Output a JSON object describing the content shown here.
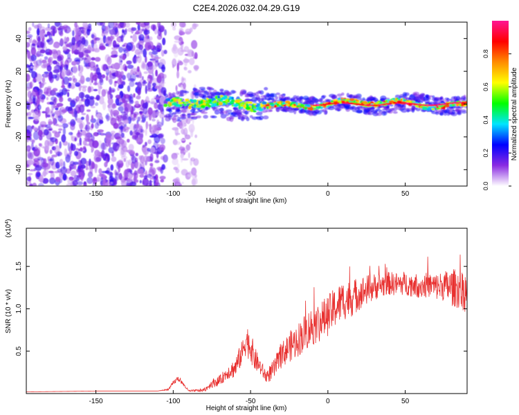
{
  "figure_title": "C2E4.2026.032.04.29.G19",
  "chart_data": [
    {
      "type": "heatmap",
      "title": "C2E4.2026.032.04.29.G19",
      "xlabel": "Height of straight line (km)",
      "ylabel": "Frequency (Hz)",
      "xlim": [
        -195,
        90
      ],
      "ylim": [
        -50,
        50
      ],
      "xticks": [
        -150,
        -100,
        -50,
        0,
        50
      ],
      "yticks": [
        -40,
        -20,
        0,
        20,
        40
      ],
      "xtick_labels": [
        "-150",
        "-100",
        "-50",
        "0",
        "50"
      ],
      "ytick_labels": [
        "-40",
        "-20",
        "0",
        "20",
        "40"
      ],
      "colorbar": {
        "label": "Normalized spectral amplitude",
        "range": [
          0,
          1
        ],
        "ticks": [
          0.0,
          0.2,
          0.4,
          0.6,
          0.8
        ],
        "tick_labels": [
          "0.0",
          "0.2",
          "0.4",
          "0.6",
          "0.8"
        ],
        "colors": [
          "#ffffff",
          "#8a2be2",
          "#0000ff",
          "#00e5ff",
          "#00ff00",
          "#ffff00",
          "#ff8c00",
          "#ff0000",
          "#ff1493"
        ]
      },
      "regions": [
        {
          "name": "noise",
          "x": [
            -195,
            -105
          ],
          "freq": [
            -50,
            50
          ],
          "amplitude": 0.15
        },
        {
          "name": "sparse-noise",
          "x": [
            -100,
            -85
          ],
          "freq": [
            -50,
            50
          ],
          "amplitude": 0.08
        },
        {
          "name": "signal-track",
          "x": [
            -105,
            90
          ],
          "freq_center": 0,
          "width_hz": 8,
          "amplitude": 0.9
        }
      ]
    },
    {
      "type": "line",
      "xlabel": "Height of straight line (km)",
      "ylabel": "SNR (10 * v/v)",
      "y_scale_label": "(x10",
      "y_scale_exponent": "4",
      "y_scale_close": ")",
      "xlim": [
        -195,
        90
      ],
      "ylim": [
        0,
        1.95
      ],
      "xticks": [
        -150,
        -100,
        -50,
        0,
        50
      ],
      "xtick_labels": [
        "-150",
        "-100",
        "-50",
        "0",
        "50"
      ],
      "yticks": [
        0.5,
        1.0,
        1.5
      ],
      "ytick_labels": [
        "0.5",
        "1.0",
        "1.5"
      ],
      "line_color": "#e8302f",
      "series": [
        {
          "name": "SNR",
          "x": [
            -195,
            -150,
            -110,
            -103,
            -100,
            -97,
            -93,
            -90,
            -80,
            -75,
            -70,
            -65,
            -60,
            -55,
            -53,
            -50,
            -47,
            -45,
            -40,
            -35,
            -30,
            -25,
            -20,
            -15,
            -10,
            -5,
            0,
            5,
            10,
            15,
            20,
            25,
            30,
            35,
            40,
            45,
            50,
            55,
            60,
            65,
            70,
            75,
            80,
            85,
            90
          ],
          "values": [
            0.02,
            0.03,
            0.03,
            0.05,
            0.12,
            0.18,
            0.1,
            0.03,
            0.04,
            0.12,
            0.15,
            0.25,
            0.3,
            0.5,
            0.65,
            0.55,
            0.4,
            0.35,
            0.2,
            0.28,
            0.45,
            0.55,
            0.62,
            0.72,
            0.8,
            0.85,
            0.92,
            1.02,
            1.1,
            1.12,
            1.18,
            1.22,
            1.26,
            1.28,
            1.3,
            1.29,
            1.3,
            1.28,
            1.27,
            1.28,
            1.26,
            1.27,
            1.25,
            1.24,
            1.2
          ],
          "noise_amplitude": [
            0,
            0,
            0,
            0.01,
            0.03,
            0.03,
            0.02,
            0.01,
            0.02,
            0.05,
            0.06,
            0.08,
            0.12,
            0.15,
            0.2,
            0.18,
            0.15,
            0.1,
            0.08,
            0.12,
            0.15,
            0.18,
            0.2,
            0.22,
            0.24,
            0.24,
            0.24,
            0.24,
            0.24,
            0.22,
            0.2,
            0.18,
            0.16,
            0.15,
            0.14,
            0.14,
            0.14,
            0.14,
            0.15,
            0.15,
            0.16,
            0.18,
            0.22,
            0.24,
            0.25
          ]
        }
      ]
    }
  ]
}
